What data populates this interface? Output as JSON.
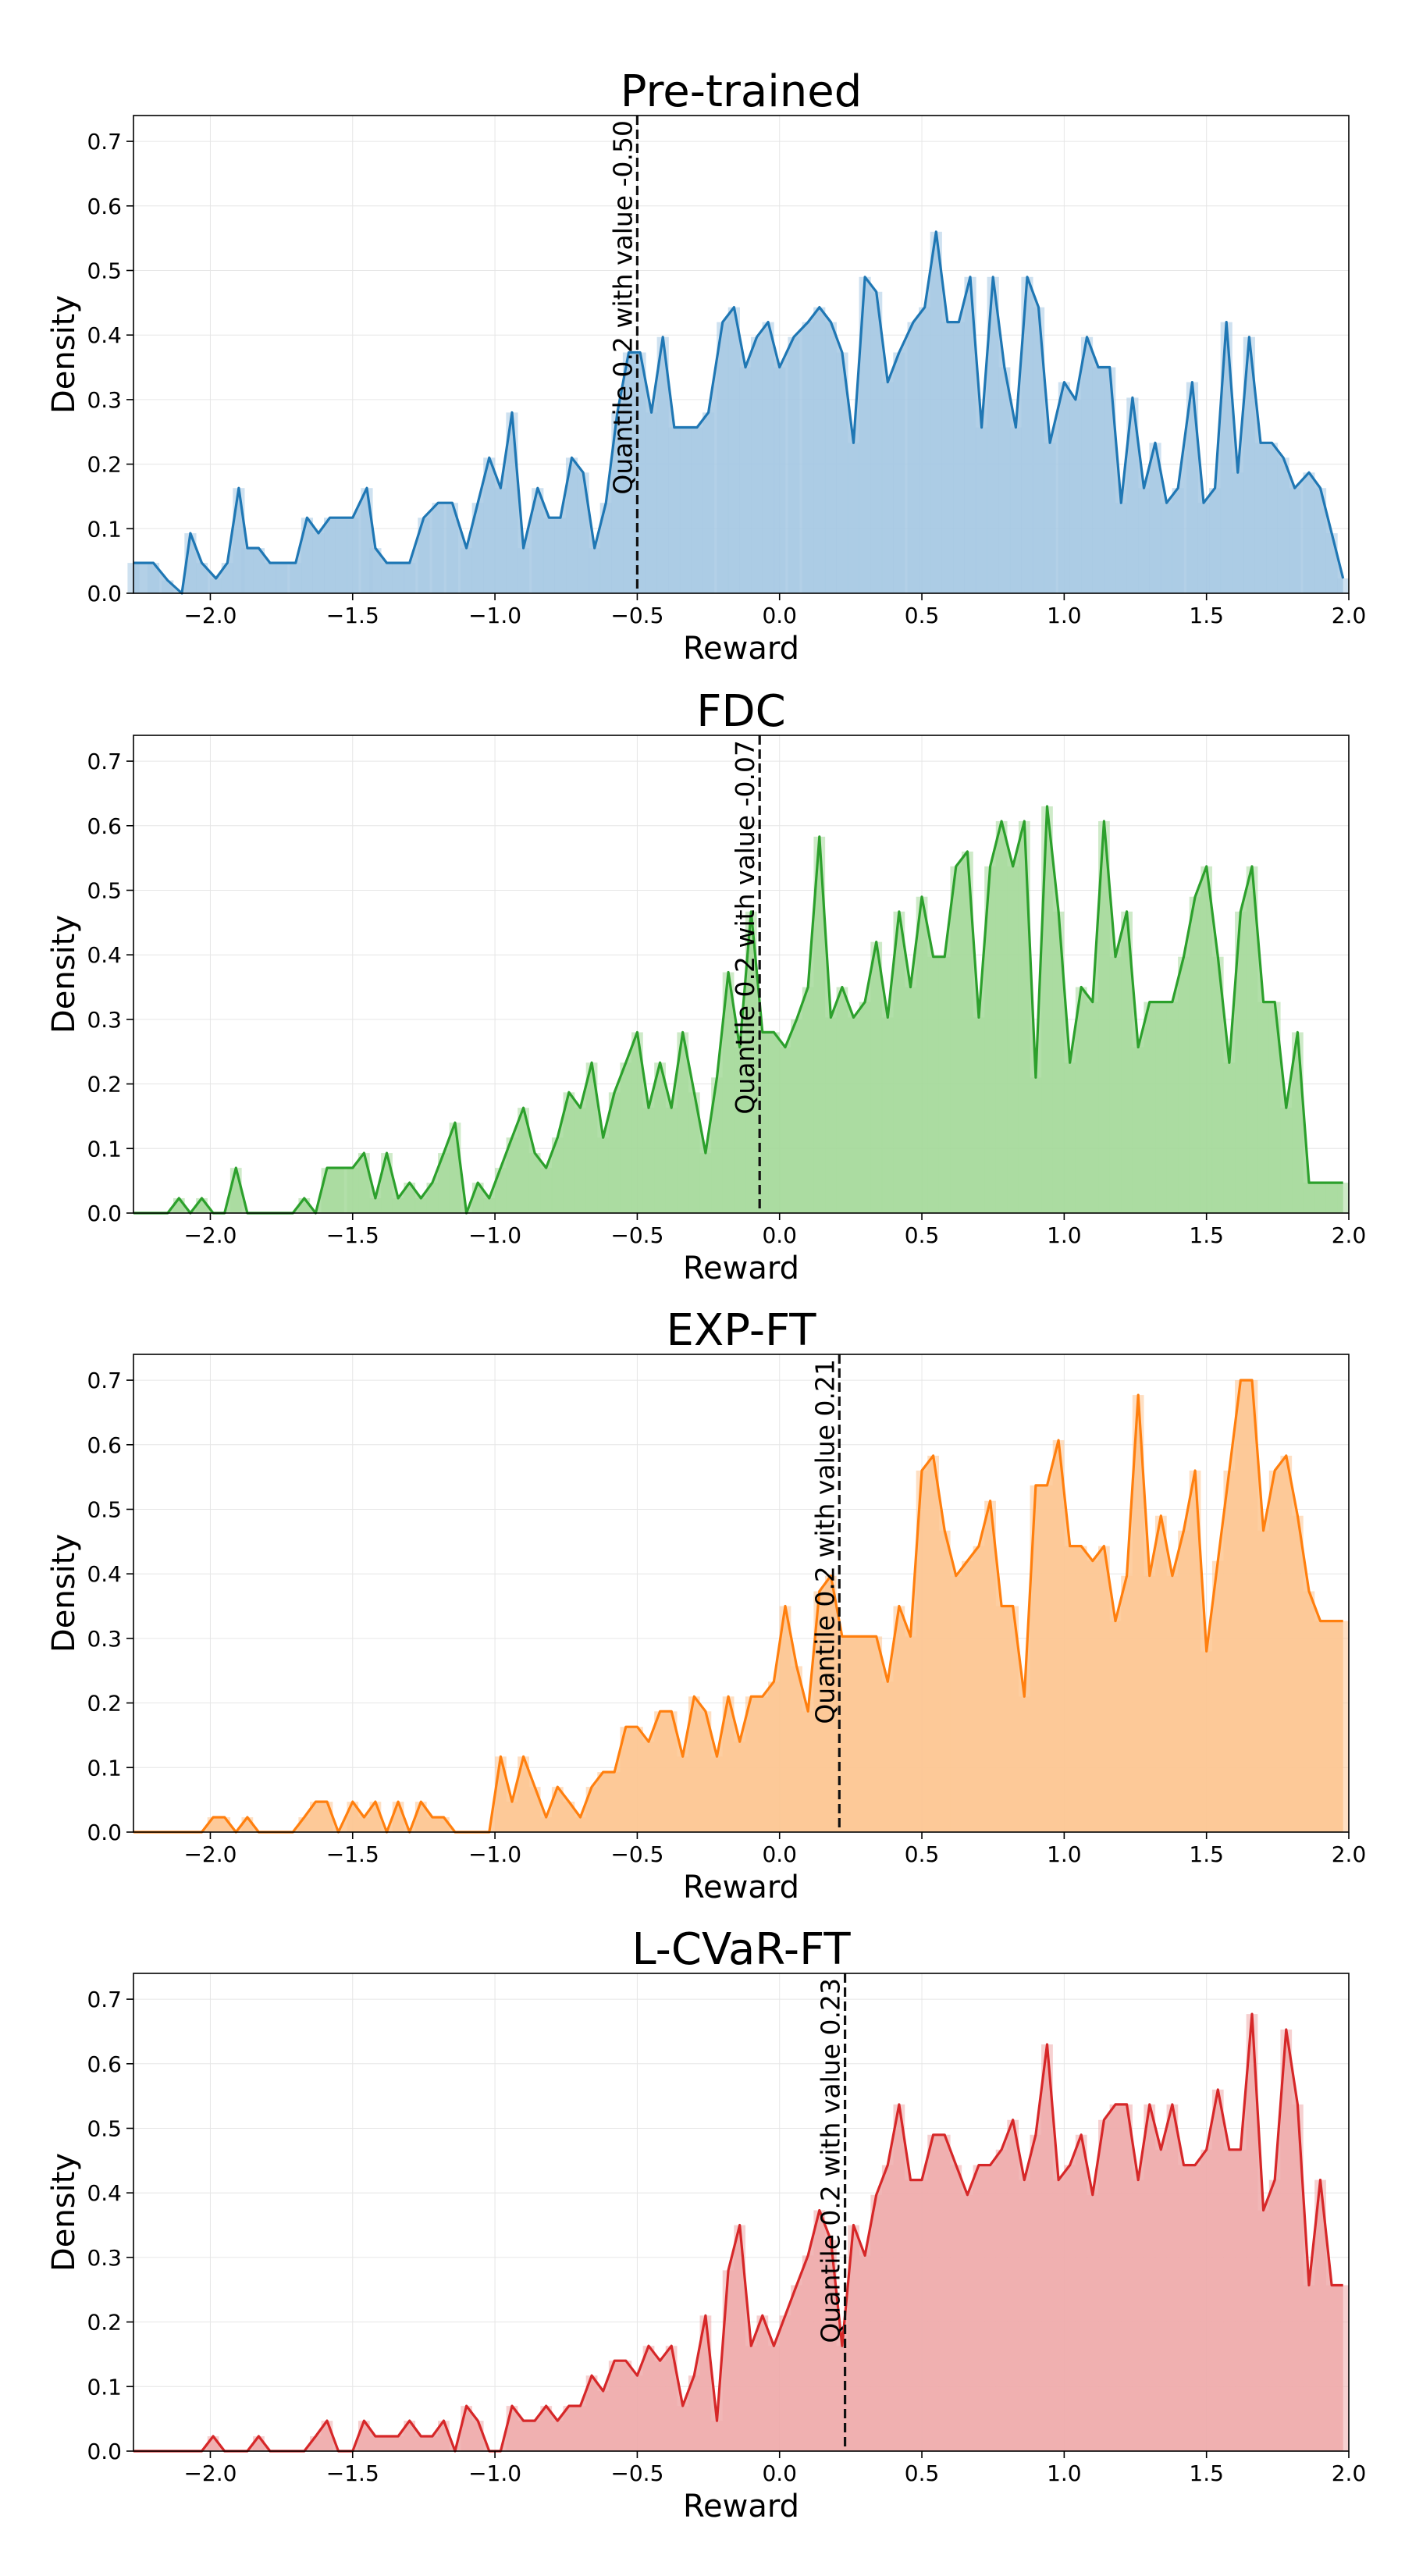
{
  "chart_data": [
    {
      "type": "area",
      "title": "Pre-trained",
      "xlabel": "Reward",
      "ylabel": "Density",
      "color": "#1f77b4",
      "fill": "#a6c8e3",
      "xlim": [
        -2.27,
        2.0
      ],
      "ylim": [
        0,
        0.74
      ],
      "xticks": [
        -2.0,
        -1.5,
        -1.0,
        -0.5,
        0.0,
        0.5,
        1.0,
        1.5,
        2.0
      ],
      "xtick_labels": [
        "−2.0",
        "−1.5",
        "−1.0",
        "−0.5",
        "0.0",
        "0.5",
        "1.0",
        "1.5",
        "2.0"
      ],
      "yticks": [
        0.0,
        0.1,
        0.2,
        0.3,
        0.4,
        0.5,
        0.6,
        0.7
      ],
      "ytick_labels": [
        "0.0",
        "0.1",
        "0.2",
        "0.3",
        "0.4",
        "0.5",
        "0.6",
        "0.7"
      ],
      "grid": true,
      "quantile": {
        "x": -0.5,
        "label": "Quantile 0.2 with value -0.50"
      },
      "x": [
        -2.27,
        -2.2,
        -2.15,
        -2.1,
        -2.07,
        -2.03,
        -1.98,
        -1.94,
        -1.9,
        -1.87,
        -1.83,
        -1.79,
        -1.75,
        -1.7,
        -1.66,
        -1.62,
        -1.58,
        -1.54,
        -1.5,
        -1.45,
        -1.42,
        -1.38,
        -1.34,
        -1.3,
        -1.25,
        -1.2,
        -1.15,
        -1.1,
        -1.06,
        -1.02,
        -0.98,
        -0.94,
        -0.9,
        -0.85,
        -0.81,
        -0.77,
        -0.73,
        -0.69,
        -0.65,
        -0.61,
        -0.57,
        -0.53,
        -0.49,
        -0.45,
        -0.41,
        -0.37,
        -0.33,
        -0.29,
        -0.25,
        -0.2,
        -0.16,
        -0.12,
        -0.08,
        -0.04,
        0.0,
        0.05,
        0.1,
        0.14,
        0.18,
        0.22,
        0.26,
        0.3,
        0.34,
        0.38,
        0.42,
        0.47,
        0.51,
        0.55,
        0.59,
        0.63,
        0.67,
        0.71,
        0.75,
        0.79,
        0.83,
        0.87,
        0.91,
        0.95,
        1.0,
        1.04,
        1.08,
        1.12,
        1.16,
        1.2,
        1.24,
        1.28,
        1.32,
        1.36,
        1.4,
        1.45,
        1.49,
        1.53,
        1.57,
        1.61,
        1.65,
        1.69,
        1.73,
        1.77,
        1.81,
        1.86,
        1.9,
        1.94,
        1.98
      ],
      "values": [
        0.047,
        0.047,
        0.02,
        0.0,
        0.093,
        0.047,
        0.023,
        0.047,
        0.163,
        0.07,
        0.07,
        0.047,
        0.047,
        0.047,
        0.117,
        0.093,
        0.117,
        0.117,
        0.117,
        0.163,
        0.07,
        0.047,
        0.047,
        0.047,
        0.117,
        0.14,
        0.14,
        0.07,
        0.14,
        0.21,
        0.163,
        0.28,
        0.07,
        0.163,
        0.117,
        0.117,
        0.21,
        0.187,
        0.07,
        0.14,
        0.28,
        0.373,
        0.373,
        0.28,
        0.397,
        0.257,
        0.257,
        0.257,
        0.28,
        0.42,
        0.443,
        0.35,
        0.397,
        0.42,
        0.35,
        0.397,
        0.42,
        0.443,
        0.42,
        0.373,
        0.233,
        0.49,
        0.467,
        0.327,
        0.373,
        0.42,
        0.443,
        0.56,
        0.42,
        0.42,
        0.49,
        0.257,
        0.49,
        0.35,
        0.257,
        0.49,
        0.443,
        0.233,
        0.327,
        0.3,
        0.397,
        0.35,
        0.35,
        0.14,
        0.303,
        0.163,
        0.233,
        0.14,
        0.163,
        0.327,
        0.14,
        0.163,
        0.42,
        0.187,
        0.397,
        0.233,
        0.233,
        0.21,
        0.163,
        0.187,
        0.163,
        0.093,
        0.023
      ]
    },
    {
      "type": "area",
      "title": "FDC",
      "xlabel": "Reward",
      "ylabel": "Density",
      "color": "#2ca02c",
      "fill": "#a5d99a",
      "xlim": [
        -2.27,
        2.0
      ],
      "ylim": [
        0,
        0.74
      ],
      "xticks": [
        -2.0,
        -1.5,
        -1.0,
        -0.5,
        0.0,
        0.5,
        1.0,
        1.5,
        2.0
      ],
      "xtick_labels": [
        "−2.0",
        "−1.5",
        "−1.0",
        "−0.5",
        "0.0",
        "0.5",
        "1.0",
        "1.5",
        "2.0"
      ],
      "yticks": [
        0.0,
        0.1,
        0.2,
        0.3,
        0.4,
        0.5,
        0.6,
        0.7
      ],
      "ytick_labels": [
        "0.0",
        "0.1",
        "0.2",
        "0.3",
        "0.4",
        "0.5",
        "0.6",
        "0.7"
      ],
      "grid": true,
      "quantile": {
        "x": -0.07,
        "label": "Quantile 0.2 with value -0.07"
      },
      "x": [
        -2.27,
        -2.2,
        -2.15,
        -2.11,
        -2.07,
        -2.03,
        -1.99,
        -1.95,
        -1.91,
        -1.87,
        -1.83,
        -1.79,
        -1.75,
        -1.71,
        -1.67,
        -1.63,
        -1.59,
        -1.55,
        -1.5,
        -1.46,
        -1.42,
        -1.38,
        -1.34,
        -1.3,
        -1.26,
        -1.22,
        -1.18,
        -1.14,
        -1.1,
        -1.06,
        -1.02,
        -0.98,
        -0.94,
        -0.9,
        -0.86,
        -0.82,
        -0.78,
        -0.74,
        -0.7,
        -0.66,
        -0.62,
        -0.58,
        -0.54,
        -0.5,
        -0.46,
        -0.42,
        -0.38,
        -0.34,
        -0.3,
        -0.26,
        -0.22,
        -0.18,
        -0.14,
        -0.1,
        -0.06,
        -0.02,
        0.02,
        0.06,
        0.1,
        0.14,
        0.18,
        0.22,
        0.26,
        0.3,
        0.34,
        0.38,
        0.42,
        0.46,
        0.5,
        0.54,
        0.58,
        0.62,
        0.66,
        0.7,
        0.74,
        0.78,
        0.82,
        0.86,
        0.9,
        0.94,
        0.98,
        1.02,
        1.06,
        1.1,
        1.14,
        1.18,
        1.22,
        1.26,
        1.3,
        1.34,
        1.38,
        1.42,
        1.46,
        1.5,
        1.54,
        1.58,
        1.62,
        1.66,
        1.7,
        1.74,
        1.78,
        1.82,
        1.86,
        1.9,
        1.94,
        1.98
      ],
      "values": [
        0.0,
        0.0,
        0.0,
        0.023,
        0.0,
        0.023,
        0.0,
        0.0,
        0.07,
        0.0,
        0.0,
        0.0,
        0.0,
        0.0,
        0.023,
        0.0,
        0.07,
        0.07,
        0.07,
        0.093,
        0.023,
        0.093,
        0.023,
        0.047,
        0.023,
        0.047,
        0.093,
        0.14,
        0.0,
        0.047,
        0.023,
        0.07,
        0.117,
        0.163,
        0.093,
        0.07,
        0.117,
        0.187,
        0.163,
        0.233,
        0.117,
        0.187,
        0.233,
        0.28,
        0.163,
        0.233,
        0.163,
        0.28,
        0.187,
        0.093,
        0.21,
        0.373,
        0.257,
        0.467,
        0.28,
        0.28,
        0.257,
        0.3,
        0.35,
        0.583,
        0.303,
        0.35,
        0.303,
        0.327,
        0.42,
        0.303,
        0.467,
        0.35,
        0.49,
        0.397,
        0.397,
        0.537,
        0.56,
        0.303,
        0.537,
        0.607,
        0.537,
        0.607,
        0.21,
        0.63,
        0.467,
        0.233,
        0.35,
        0.327,
        0.607,
        0.397,
        0.467,
        0.257,
        0.327,
        0.327,
        0.327,
        0.397,
        0.49,
        0.537,
        0.397,
        0.233,
        0.467,
        0.537,
        0.327,
        0.327,
        0.163,
        0.28,
        0.047,
        0.047,
        0.047,
        0.047
      ]
    },
    {
      "type": "area",
      "title": "EXP-FT",
      "xlabel": "Reward",
      "ylabel": "Density",
      "color": "#ff7f0e",
      "fill": "#fdc591",
      "xlim": [
        -2.27,
        2.0
      ],
      "ylim": [
        0,
        0.74
      ],
      "xticks": [
        -2.0,
        -1.5,
        -1.0,
        -0.5,
        0.0,
        0.5,
        1.0,
        1.5,
        2.0
      ],
      "xtick_labels": [
        "−2.0",
        "−1.5",
        "−1.0",
        "−0.5",
        "0.0",
        "0.5",
        "1.0",
        "1.5",
        "2.0"
      ],
      "yticks": [
        0.0,
        0.1,
        0.2,
        0.3,
        0.4,
        0.5,
        0.6,
        0.7
      ],
      "ytick_labels": [
        "0.0",
        "0.1",
        "0.2",
        "0.3",
        "0.4",
        "0.5",
        "0.6",
        "0.7"
      ],
      "grid": true,
      "quantile": {
        "x": 0.21,
        "label": "Quantile 0.2 with value 0.21"
      },
      "x": [
        -2.27,
        -2.2,
        -2.15,
        -2.11,
        -2.07,
        -2.03,
        -1.99,
        -1.95,
        -1.91,
        -1.87,
        -1.83,
        -1.79,
        -1.75,
        -1.71,
        -1.67,
        -1.63,
        -1.59,
        -1.55,
        -1.5,
        -1.46,
        -1.42,
        -1.38,
        -1.34,
        -1.3,
        -1.26,
        -1.22,
        -1.18,
        -1.14,
        -1.1,
        -1.06,
        -1.02,
        -0.98,
        -0.94,
        -0.9,
        -0.86,
        -0.82,
        -0.78,
        -0.74,
        -0.7,
        -0.66,
        -0.62,
        -0.58,
        -0.54,
        -0.5,
        -0.46,
        -0.42,
        -0.38,
        -0.34,
        -0.3,
        -0.26,
        -0.22,
        -0.18,
        -0.14,
        -0.1,
        -0.06,
        -0.02,
        0.02,
        0.06,
        0.1,
        0.14,
        0.18,
        0.22,
        0.26,
        0.3,
        0.34,
        0.38,
        0.42,
        0.46,
        0.5,
        0.54,
        0.58,
        0.62,
        0.66,
        0.7,
        0.74,
        0.78,
        0.82,
        0.86,
        0.9,
        0.94,
        0.98,
        1.02,
        1.06,
        1.1,
        1.14,
        1.18,
        1.22,
        1.26,
        1.3,
        1.34,
        1.38,
        1.42,
        1.46,
        1.5,
        1.54,
        1.58,
        1.62,
        1.66,
        1.7,
        1.74,
        1.78,
        1.82,
        1.86,
        1.9,
        1.94,
        1.98
      ],
      "values": [
        0.0,
        0.0,
        0.0,
        0.0,
        0.0,
        0.0,
        0.023,
        0.023,
        0.0,
        0.023,
        0.0,
        0.0,
        0.0,
        0.0,
        0.023,
        0.047,
        0.047,
        0.0,
        0.047,
        0.023,
        0.047,
        0.0,
        0.047,
        0.0,
        0.047,
        0.023,
        0.023,
        0.0,
        0.0,
        0.0,
        0.0,
        0.117,
        0.047,
        0.117,
        0.07,
        0.023,
        0.07,
        0.047,
        0.023,
        0.07,
        0.093,
        0.093,
        0.163,
        0.163,
        0.14,
        0.187,
        0.187,
        0.117,
        0.21,
        0.187,
        0.117,
        0.21,
        0.14,
        0.21,
        0.21,
        0.233,
        0.35,
        0.257,
        0.187,
        0.373,
        0.397,
        0.303,
        0.303,
        0.303,
        0.303,
        0.233,
        0.35,
        0.303,
        0.56,
        0.583,
        0.467,
        0.397,
        0.42,
        0.443,
        0.513,
        0.35,
        0.35,
        0.21,
        0.537,
        0.537,
        0.607,
        0.443,
        0.443,
        0.42,
        0.443,
        0.327,
        0.397,
        0.677,
        0.397,
        0.49,
        0.397,
        0.467,
        0.56,
        0.28,
        0.42,
        0.56,
        0.7,
        0.7,
        0.467,
        0.56,
        0.583,
        0.49,
        0.373,
        0.327,
        0.327,
        0.327
      ]
    },
    {
      "type": "area",
      "title": "L-CVaR-FT",
      "xlabel": "Reward",
      "ylabel": "Density",
      "color": "#d62728",
      "fill": "#eeaaaa",
      "xlim": [
        -2.27,
        2.0
      ],
      "ylim": [
        0,
        0.74
      ],
      "xticks": [
        -2.0,
        -1.5,
        -1.0,
        -0.5,
        0.0,
        0.5,
        1.0,
        1.5,
        2.0
      ],
      "xtick_labels": [
        "−2.0",
        "−1.5",
        "−1.0",
        "−0.5",
        "0.0",
        "0.5",
        "1.0",
        "1.5",
        "2.0"
      ],
      "yticks": [
        0.0,
        0.1,
        0.2,
        0.3,
        0.4,
        0.5,
        0.6,
        0.7
      ],
      "ytick_labels": [
        "0.0",
        "0.1",
        "0.2",
        "0.3",
        "0.4",
        "0.5",
        "0.6",
        "0.7"
      ],
      "grid": true,
      "quantile": {
        "x": 0.23,
        "label": "Quantile 0.2 with value 0.23"
      },
      "x": [
        -2.27,
        -2.2,
        -2.15,
        -2.11,
        -2.07,
        -2.03,
        -1.99,
        -1.95,
        -1.91,
        -1.87,
        -1.83,
        -1.79,
        -1.75,
        -1.71,
        -1.67,
        -1.63,
        -1.59,
        -1.55,
        -1.5,
        -1.46,
        -1.42,
        -1.38,
        -1.34,
        -1.3,
        -1.26,
        -1.22,
        -1.18,
        -1.14,
        -1.1,
        -1.06,
        -1.02,
        -0.98,
        -0.94,
        -0.9,
        -0.86,
        -0.82,
        -0.78,
        -0.74,
        -0.7,
        -0.66,
        -0.62,
        -0.58,
        -0.54,
        -0.5,
        -0.46,
        -0.42,
        -0.38,
        -0.34,
        -0.3,
        -0.26,
        -0.22,
        -0.18,
        -0.14,
        -0.1,
        -0.06,
        -0.02,
        0.02,
        0.06,
        0.1,
        0.14,
        0.18,
        0.22,
        0.26,
        0.3,
        0.34,
        0.38,
        0.42,
        0.46,
        0.5,
        0.54,
        0.58,
        0.62,
        0.66,
        0.7,
        0.74,
        0.78,
        0.82,
        0.86,
        0.9,
        0.94,
        0.98,
        1.02,
        1.06,
        1.1,
        1.14,
        1.18,
        1.22,
        1.26,
        1.3,
        1.34,
        1.38,
        1.42,
        1.46,
        1.5,
        1.54,
        1.58,
        1.62,
        1.66,
        1.7,
        1.74,
        1.78,
        1.82,
        1.86,
        1.9,
        1.94,
        1.98
      ],
      "values": [
        0.0,
        0.0,
        0.0,
        0.0,
        0.0,
        0.0,
        0.023,
        0.0,
        0.0,
        0.0,
        0.023,
        0.0,
        0.0,
        0.0,
        0.0,
        0.023,
        0.047,
        0.0,
        0.0,
        0.047,
        0.023,
        0.023,
        0.023,
        0.047,
        0.023,
        0.023,
        0.047,
        0.0,
        0.07,
        0.047,
        0.0,
        0.0,
        0.07,
        0.047,
        0.047,
        0.07,
        0.047,
        0.07,
        0.07,
        0.117,
        0.093,
        0.14,
        0.14,
        0.117,
        0.163,
        0.14,
        0.163,
        0.07,
        0.117,
        0.21,
        0.047,
        0.28,
        0.35,
        0.163,
        0.21,
        0.163,
        0.21,
        0.257,
        0.303,
        0.373,
        0.327,
        0.163,
        0.35,
        0.303,
        0.397,
        0.443,
        0.537,
        0.42,
        0.42,
        0.49,
        0.49,
        0.443,
        0.397,
        0.443,
        0.443,
        0.467,
        0.513,
        0.42,
        0.49,
        0.63,
        0.42,
        0.443,
        0.49,
        0.397,
        0.513,
        0.537,
        0.537,
        0.42,
        0.537,
        0.467,
        0.537,
        0.443,
        0.443,
        0.467,
        0.56,
        0.467,
        0.467,
        0.677,
        0.373,
        0.42,
        0.653,
        0.537,
        0.257,
        0.42,
        0.257,
        0.257
      ]
    }
  ]
}
